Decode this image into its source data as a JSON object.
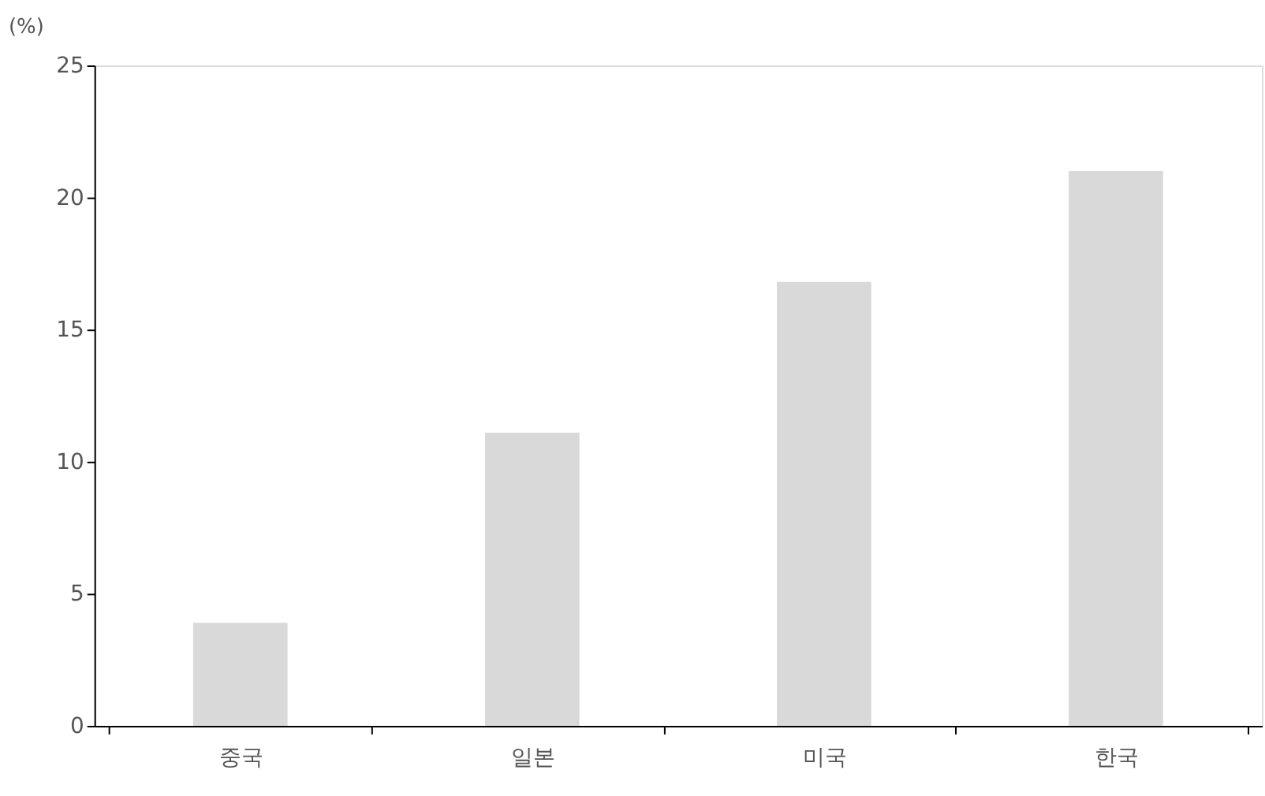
{
  "chart_data": {
    "type": "bar",
    "ylabel": "(%)",
    "categories": [
      "중국",
      "일본",
      "미국",
      "한국"
    ],
    "values": [
      3.9,
      11.1,
      16.8,
      21.0
    ],
    "color": "#d9d9d9",
    "ylim": [
      0,
      25
    ],
    "yticks": [
      0,
      5,
      10,
      15,
      20,
      25
    ],
    "grid": false
  }
}
